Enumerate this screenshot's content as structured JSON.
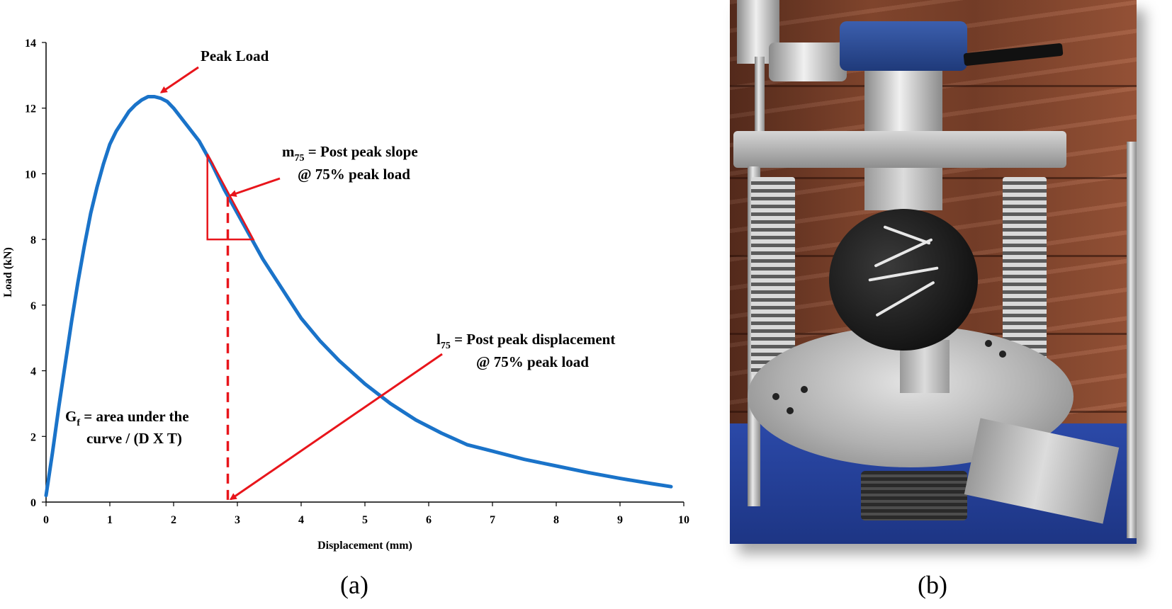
{
  "chart_data": {
    "type": "line",
    "title": "",
    "xlabel": "Displacement (mm)",
    "ylabel": "Load (kN)",
    "xlim": [
      0,
      10
    ],
    "ylim": [
      0,
      14
    ],
    "xticks": [
      "0",
      "1",
      "2",
      "3",
      "4",
      "5",
      "6",
      "7",
      "8",
      "9",
      "10"
    ],
    "yticks": [
      "0",
      "2",
      "4",
      "6",
      "8",
      "10",
      "12",
      "14"
    ],
    "grid": false,
    "legend": "none",
    "series": [
      {
        "color": "#1a73c9",
        "x": [
          0,
          0.1,
          0.2,
          0.3,
          0.4,
          0.5,
          0.6,
          0.7,
          0.8,
          0.9,
          1.0,
          1.1,
          1.2,
          1.3,
          1.4,
          1.5,
          1.6,
          1.7,
          1.8,
          1.9,
          2.0,
          2.2,
          2.4,
          2.6,
          2.8,
          3.0,
          3.2,
          3.4,
          3.6,
          3.8,
          4.0,
          4.3,
          4.6,
          5.0,
          5.4,
          5.8,
          6.2,
          6.6,
          7.0,
          7.5,
          8.0,
          8.5,
          9.0,
          9.5,
          9.8
        ],
        "y": [
          0.2,
          1.5,
          2.9,
          4.2,
          5.5,
          6.7,
          7.8,
          8.8,
          9.6,
          10.3,
          10.9,
          11.3,
          11.6,
          11.9,
          12.1,
          12.25,
          12.35,
          12.35,
          12.3,
          12.2,
          12.0,
          11.5,
          11.0,
          10.3,
          9.5,
          8.8,
          8.1,
          7.4,
          6.8,
          6.2,
          5.6,
          4.9,
          4.3,
          3.6,
          3.0,
          2.5,
          2.1,
          1.75,
          1.55,
          1.3,
          1.1,
          0.9,
          0.72,
          0.56,
          0.47
        ]
      }
    ],
    "annotations": {
      "peak": "Peak Load",
      "m75_sym": "m",
      "m75_sub": "75",
      "m75_line1": " = Post peak slope",
      "m75_line2": "@ 75% peak load",
      "l75_sym": "l",
      "l75_sub": "75",
      "l75_line1": " = Post peak displacement",
      "l75_line2": "@ 75% peak load",
      "gf_sym": "G",
      "gf_sub": "f",
      "gf_line1": " = area under the",
      "gf_line2": "curve / (D X T)"
    },
    "marks": {
      "peak_point": [
        1.75,
        12.35
      ],
      "m75_point": [
        2.85,
        9.3
      ],
      "l75_point": [
        2.85,
        0
      ],
      "dashed_x": 2.85,
      "triangle": [
        [
          2.53,
          10.6
        ],
        [
          2.53,
          8.0
        ],
        [
          3.25,
          8.0
        ]
      ],
      "annotation_color": "#e8151b"
    }
  },
  "panels": {
    "a": "(a)",
    "b": "(b)"
  }
}
